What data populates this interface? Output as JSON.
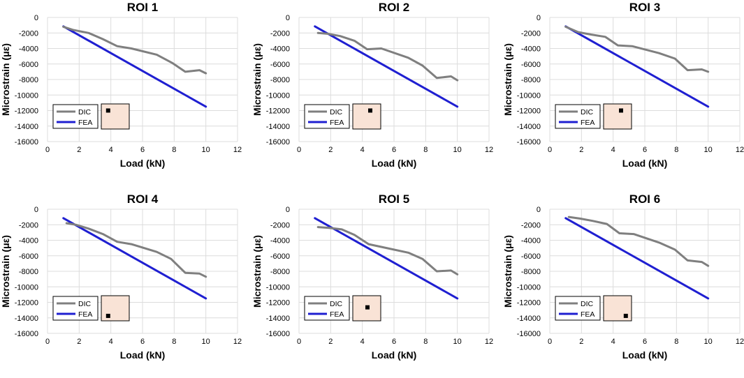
{
  "colors": {
    "dic": "#7f7f7f",
    "fea": "#1f1fd1",
    "grid": "#dcdcdc",
    "roi_swatch": "#f9e3d6",
    "roi_marker": "#000000"
  },
  "chart_data": [
    {
      "type": "line",
      "title": "ROI 1",
      "xlabel": "Load (kN)",
      "ylabel": "Microstrain (με)",
      "xlim": [
        0,
        12
      ],
      "ylim": [
        -16000,
        0
      ],
      "xticks": [
        "0",
        "2",
        "4",
        "6",
        "8",
        "10",
        "12"
      ],
      "yticks": [
        "0",
        "-2000",
        "-4000",
        "-6000",
        "-8000",
        "-10000",
        "-12000",
        "-14000",
        "-16000"
      ],
      "grid": true,
      "legend": [
        "DIC",
        "FEA"
      ],
      "legend_position": "bottom-left",
      "marker_position": "top-left",
      "series": [
        {
          "name": "DIC",
          "x": [
            1.0,
            1.6,
            2.6,
            3.5,
            4.4,
            5.3,
            6.9,
            7.9,
            8.7,
            9.6,
            10.0
          ],
          "y": [
            -1200,
            -1600,
            -2000,
            -2800,
            -3700,
            -4000,
            -4800,
            -5900,
            -7000,
            -6800,
            -7200
          ]
        },
        {
          "name": "FEA",
          "x": [
            1,
            10
          ],
          "y": [
            -1150,
            -11500
          ]
        }
      ]
    },
    {
      "type": "line",
      "title": "ROI 2",
      "xlabel": "Load (kN)",
      "ylabel": "Microstrain (με)",
      "xlim": [
        0,
        12
      ],
      "ylim": [
        -16000,
        0
      ],
      "xticks": [
        "0",
        "2",
        "4",
        "6",
        "8",
        "10",
        "12"
      ],
      "yticks": [
        "0",
        "-2000",
        "-4000",
        "-6000",
        "-8000",
        "-10000",
        "-12000",
        "-14000",
        "-16000"
      ],
      "grid": true,
      "legend": [
        "DIC",
        "FEA"
      ],
      "legend_position": "bottom-left",
      "marker_position": "top-right",
      "series": [
        {
          "name": "DIC",
          "x": [
            1.2,
            1.8,
            2.6,
            3.5,
            4.3,
            5.2,
            6.9,
            7.8,
            8.7,
            9.6,
            10.0
          ],
          "y": [
            -2000,
            -2100,
            -2400,
            -3000,
            -4100,
            -4000,
            -5200,
            -6200,
            -7800,
            -7600,
            -8100
          ]
        },
        {
          "name": "FEA",
          "x": [
            1,
            10
          ],
          "y": [
            -1150,
            -11500
          ]
        }
      ]
    },
    {
      "type": "line",
      "title": "ROI 3",
      "xlabel": "Load (kN)",
      "ylabel": "Microstrain (με)",
      "xlim": [
        0,
        12
      ],
      "ylim": [
        -16000,
        0
      ],
      "xticks": [
        "0",
        "2",
        "4",
        "6",
        "8",
        "10",
        "12"
      ],
      "yticks": [
        "0",
        "-2000",
        "-4000",
        "-6000",
        "-8000",
        "-10000",
        "-12000",
        "-14000",
        "-16000"
      ],
      "grid": true,
      "legend": [
        "DIC",
        "FEA"
      ],
      "legend_position": "bottom-left",
      "marker_position": "top-right",
      "series": [
        {
          "name": "DIC",
          "x": [
            1.0,
            1.8,
            2.6,
            3.5,
            4.3,
            5.2,
            6.9,
            7.9,
            8.7,
            9.6,
            10.0
          ],
          "y": [
            -1200,
            -1900,
            -2200,
            -2500,
            -3600,
            -3700,
            -4600,
            -5300,
            -6800,
            -6700,
            -7000
          ]
        },
        {
          "name": "FEA",
          "x": [
            1,
            10
          ],
          "y": [
            -1150,
            -11500
          ]
        }
      ]
    },
    {
      "type": "line",
      "title": "ROI 4",
      "xlabel": "Load (kN)",
      "ylabel": "Microstrain (με)",
      "xlim": [
        0,
        12
      ],
      "ylim": [
        -16000,
        0
      ],
      "xticks": [
        "0",
        "2",
        "4",
        "6",
        "8",
        "10",
        "12"
      ],
      "yticks": [
        "0",
        "-2000",
        "-4000",
        "-6000",
        "-8000",
        "-10000",
        "-12000",
        "-14000",
        "-16000"
      ],
      "grid": true,
      "legend": [
        "DIC",
        "FEA"
      ],
      "legend_position": "bottom-left",
      "marker_position": "bottom-left",
      "series": [
        {
          "name": "DIC",
          "x": [
            1.2,
            1.8,
            2.6,
            3.5,
            4.4,
            5.3,
            6.9,
            7.8,
            8.7,
            9.6,
            10.0
          ],
          "y": [
            -1800,
            -2000,
            -2500,
            -3200,
            -4200,
            -4500,
            -5500,
            -6400,
            -8200,
            -8300,
            -8700
          ]
        },
        {
          "name": "FEA",
          "x": [
            1,
            10
          ],
          "y": [
            -1150,
            -11500
          ]
        }
      ]
    },
    {
      "type": "line",
      "title": "ROI 5",
      "xlabel": "Load (kN)",
      "ylabel": "Microstrain (με)",
      "xlim": [
        0,
        12
      ],
      "ylim": [
        -16000,
        0
      ],
      "xticks": [
        "0",
        "2",
        "4",
        "6",
        "8",
        "10",
        "12"
      ],
      "yticks": [
        "0",
        "-2000",
        "-4000",
        "-6000",
        "-8000",
        "-10000",
        "-12000",
        "-14000",
        "-16000"
      ],
      "grid": true,
      "legend": [
        "DIC",
        "FEA"
      ],
      "legend_position": "bottom-left",
      "marker_position": "center",
      "series": [
        {
          "name": "DIC",
          "x": [
            1.2,
            1.9,
            2.7,
            3.5,
            4.4,
            5.3,
            6.9,
            7.8,
            8.7,
            9.6,
            10.0
          ],
          "y": [
            -2300,
            -2400,
            -2600,
            -3300,
            -4500,
            -4900,
            -5600,
            -6400,
            -8000,
            -7900,
            -8400
          ]
        },
        {
          "name": "FEA",
          "x": [
            1,
            10
          ],
          "y": [
            -1150,
            -11500
          ]
        }
      ]
    },
    {
      "type": "line",
      "title": "ROI 6",
      "xlabel": "Load (kN)",
      "ylabel": "Microstrain (με)",
      "xlim": [
        0,
        12
      ],
      "ylim": [
        -16000,
        0
      ],
      "xticks": [
        "0",
        "2",
        "4",
        "6",
        "8",
        "10",
        "12"
      ],
      "yticks": [
        "0",
        "-2000",
        "-4000",
        "-6000",
        "-8000",
        "-10000",
        "-12000",
        "-14000",
        "-16000"
      ],
      "grid": true,
      "legend": [
        "DIC",
        "FEA"
      ],
      "legend_position": "bottom-left",
      "marker_position": "bottom-right",
      "series": [
        {
          "name": "DIC",
          "x": [
            1.2,
            1.9,
            2.7,
            3.6,
            4.4,
            5.3,
            6.9,
            7.9,
            8.7,
            9.6,
            10.0
          ],
          "y": [
            -1000,
            -1200,
            -1500,
            -1900,
            -3100,
            -3200,
            -4300,
            -5200,
            -6600,
            -6800,
            -7300
          ]
        },
        {
          "name": "FEA",
          "x": [
            1,
            10
          ],
          "y": [
            -1150,
            -11500
          ]
        }
      ]
    }
  ]
}
